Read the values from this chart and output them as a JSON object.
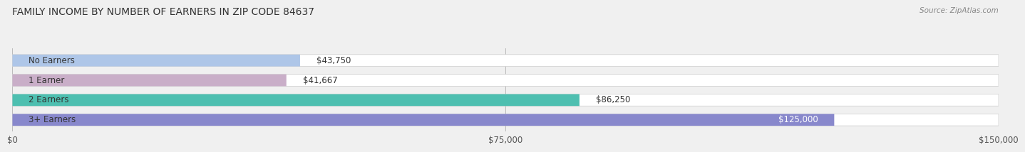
{
  "title": "FAMILY INCOME BY NUMBER OF EARNERS IN ZIP CODE 84637",
  "source": "Source: ZipAtlas.com",
  "categories": [
    "No Earners",
    "1 Earner",
    "2 Earners",
    "3+ Earners"
  ],
  "values": [
    43750,
    41667,
    86250,
    125000
  ],
  "bar_colors": [
    "#aec6e8",
    "#c9aec8",
    "#4dbfb0",
    "#8888cc"
  ],
  "value_labels": [
    "$43,750",
    "$41,667",
    "$86,250",
    "$125,000"
  ],
  "xlim": [
    0,
    150000
  ],
  "xticks": [
    0,
    75000,
    150000
  ],
  "xtick_labels": [
    "$0",
    "$75,000",
    "$150,000"
  ],
  "title_fontsize": 10,
  "label_fontsize": 8.5,
  "tick_fontsize": 8.5,
  "source_fontsize": 7.5,
  "background_color": "#f0f0f0",
  "bar_bg_color": "#ffffff",
  "bar_height": 0.6,
  "rounding": 0.3,
  "label_inside_threshold": 110000
}
